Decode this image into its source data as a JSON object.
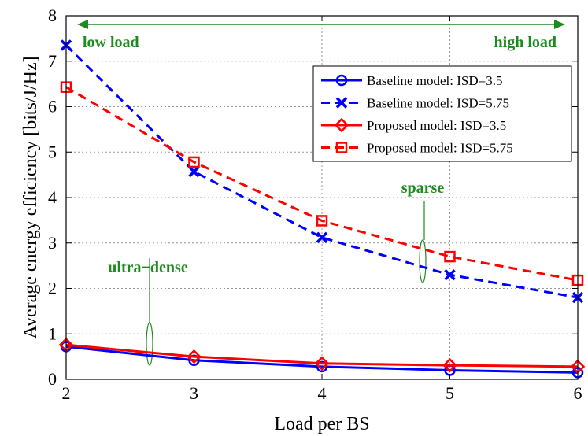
{
  "chart_data": {
    "type": "line",
    "title": "",
    "xlabel": "Load per BS",
    "ylabel": "Average energy efficiency [bits/J/Hz]",
    "x": [
      2,
      3,
      4,
      5,
      6
    ],
    "xlim": [
      2,
      6
    ],
    "ylim": [
      0,
      8
    ],
    "xticks": [
      "2",
      "3",
      "4",
      "5",
      "6"
    ],
    "yticks": [
      "0",
      "1",
      "2",
      "3",
      "4",
      "5",
      "6",
      "7",
      "8"
    ],
    "grid": true,
    "legend_position": "top-right",
    "series": [
      {
        "name": "Baseline model: ISD=3.5",
        "values": [
          0.72,
          0.42,
          0.28,
          0.2,
          0.15
        ],
        "color": "#0000ff",
        "dash": "solid",
        "marker": "circle"
      },
      {
        "name": "Baseline model: ISD=5.75",
        "values": [
          7.35,
          4.57,
          3.12,
          2.3,
          1.8
        ],
        "color": "#0000ff",
        "dash": "dashed",
        "marker": "x"
      },
      {
        "name": "Proposed model: ISD=3.5",
        "values": [
          0.76,
          0.5,
          0.35,
          0.31,
          0.28
        ],
        "color": "#ff0000",
        "dash": "solid",
        "marker": "diamond"
      },
      {
        "name": "Proposed model: ISD=5.75",
        "values": [
          6.43,
          4.78,
          3.49,
          2.7,
          2.18
        ],
        "color": "#ff0000",
        "dash": "dashed",
        "marker": "square"
      }
    ],
    "annotations": {
      "low_load": "low load",
      "high_load": "high load",
      "ultra_dense": "ultra−dense",
      "sparse": "sparse"
    },
    "annotation_color": "#1f8a1f"
  }
}
